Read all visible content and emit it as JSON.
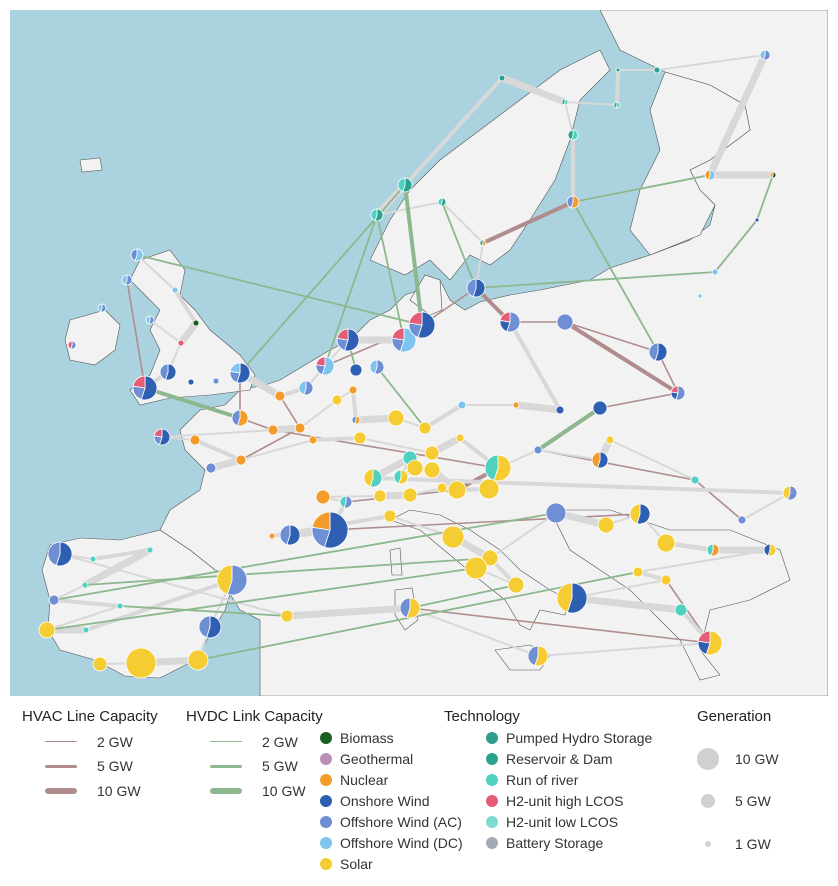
{
  "colors": {
    "sea": "#aad3df",
    "land": "#f2f2f2",
    "border": "#555555",
    "hvac": "#b08c8c",
    "hvdc": "#8db88d",
    "grid_gray": "#d8d8d8"
  },
  "legend": {
    "hvac": {
      "title": "HVAC Line Capacity",
      "items": [
        {
          "label": "2 GW"
        },
        {
          "label": "5 GW"
        },
        {
          "label": "10 GW"
        }
      ]
    },
    "hvdc": {
      "title": "HVDC Link Capacity",
      "items": [
        {
          "label": "2 GW"
        },
        {
          "label": "5 GW"
        },
        {
          "label": "10 GW"
        }
      ]
    },
    "technology": {
      "title": "Technology",
      "items": [
        {
          "label": "Biomass",
          "color": "#1a5e20"
        },
        {
          "label": "Geothermal",
          "color": "#b98fb5"
        },
        {
          "label": "Nuclear",
          "color": "#f39c2b"
        },
        {
          "label": "Onshore Wind",
          "color": "#2f5fb3"
        },
        {
          "label": "Offshore Wind (AC)",
          "color": "#6e8fd4"
        },
        {
          "label": "Offshore Wind (DC)",
          "color": "#7fc4ef"
        },
        {
          "label": "Solar",
          "color": "#f5cd32"
        },
        {
          "label": "Pumped Hydro Storage",
          "color": "#2e9e8c"
        },
        {
          "label": "Reservoir & Dam",
          "color": "#2aa38e"
        },
        {
          "label": "Run of river",
          "color": "#4fd1c0"
        },
        {
          "label": "H2-unit high LCOS",
          "color": "#e55c77"
        },
        {
          "label": "H2-unit low LCOS",
          "color": "#7edbcf"
        },
        {
          "label": "Battery Storage",
          "color": "#a4aab5"
        }
      ]
    },
    "generation": {
      "title": "Generation",
      "items": [
        {
          "label": "10 GW"
        },
        {
          "label": "5 GW"
        },
        {
          "label": "1 GW"
        }
      ]
    }
  }
}
